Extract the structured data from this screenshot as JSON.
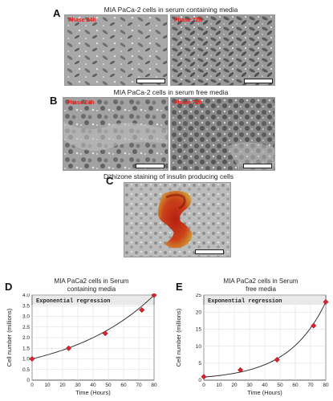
{
  "panel_a": {
    "letter": "A",
    "title": "MIA PaCa-2 cells in serum containing media",
    "label_left": "Phase 24h",
    "label_right": "Phase 72h"
  },
  "panel_b": {
    "letter": "B",
    "title": "MIA PaCa-2 cells in serum free media",
    "label_left": "Phase 24h",
    "label_right": "Phase 72h"
  },
  "panel_c": {
    "letter": "C",
    "title": "Dithizone staining of insulin producing cells"
  },
  "chart_data": [
    {
      "type": "scatter",
      "letter": "D",
      "title_line1": "MIA PaCa2 cells in Serum",
      "title_line2": "containing media",
      "inner_title": "Exponential regression",
      "xlabel": "Time (Hours)",
      "ylabel": "Cell number (millions)",
      "xlim": [
        0,
        80
      ],
      "ylim": [
        0,
        4
      ],
      "xticks": [
        0,
        10,
        20,
        30,
        40,
        50,
        60,
        70,
        80
      ],
      "yticks": [
        0,
        0.5,
        1.0,
        1.5,
        2.0,
        2.5,
        3.0,
        3.5,
        4.0
      ],
      "ytick_labels": [
        "0",
        "0.5",
        "1.0",
        "1.5",
        "2.0",
        "2.5",
        "3.0",
        "3.5",
        "4.0"
      ],
      "grid": true,
      "points": [
        {
          "x": 0,
          "y": 1.0
        },
        {
          "x": 24,
          "y": 1.5
        },
        {
          "x": 48,
          "y": 2.2
        },
        {
          "x": 72,
          "y": 3.3
        },
        {
          "x": 80,
          "y": 4.0
        }
      ],
      "fit": {
        "kind": "exponential",
        "a": 1.0,
        "b": 0.01733
      },
      "point_color": "#e0202a",
      "line_color": "#222222"
    },
    {
      "type": "scatter",
      "letter": "E",
      "title_line1": "MIA PaCa2 cells in Serum",
      "title_line2": "free media",
      "inner_title": "Exponential regression",
      "xlabel": "Time (Hours)",
      "ylabel": "Cell number (millions)",
      "xlim": [
        0,
        80
      ],
      "ylim": [
        0,
        25
      ],
      "xticks": [
        0,
        10,
        20,
        30,
        40,
        50,
        60,
        70,
        80
      ],
      "yticks": [
        0,
        5,
        10,
        15,
        20,
        25
      ],
      "ytick_labels": [
        "0",
        "5",
        "10",
        "15",
        "20",
        "25"
      ],
      "grid": true,
      "points": [
        {
          "x": 0,
          "y": 1.0
        },
        {
          "x": 24,
          "y": 3.0
        },
        {
          "x": 48,
          "y": 6.0
        },
        {
          "x": 72,
          "y": 16.0
        },
        {
          "x": 80,
          "y": 23.0
        }
      ],
      "fit": {
        "kind": "exponential",
        "a": 0.9,
        "b": 0.0405
      },
      "point_color": "#e0202a",
      "line_color": "#222222"
    }
  ]
}
